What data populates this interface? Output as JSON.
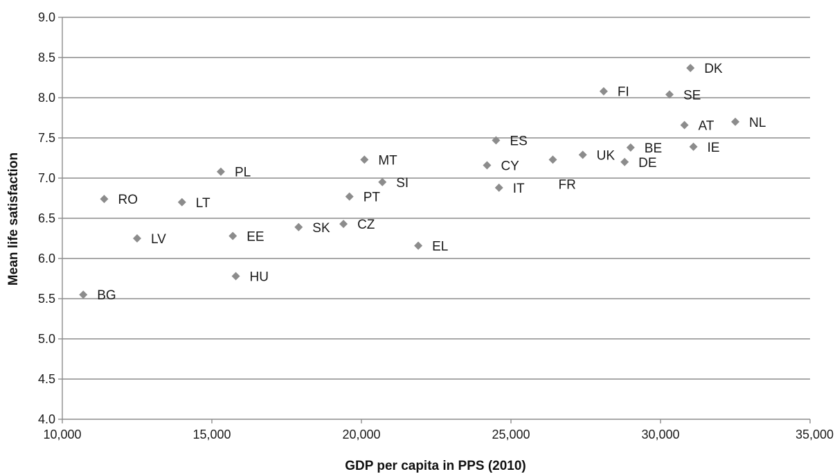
{
  "chart_data": {
    "type": "scatter",
    "title": "",
    "xlabel": "GDP per capita in PPS (2010)",
    "ylabel": "Mean life satisfaction",
    "xlim": [
      10000,
      35000
    ],
    "ylim": [
      4.0,
      9.0
    ],
    "x_ticks": [
      10000,
      15000,
      20000,
      25000,
      30000,
      35000
    ],
    "x_tick_labels": [
      "10,000",
      "15,000",
      "20,000",
      "25,000",
      "30,000",
      "35,000"
    ],
    "y_ticks": [
      4.0,
      4.5,
      5.0,
      5.5,
      6.0,
      6.5,
      7.0,
      7.5,
      8.0,
      8.5,
      9.0
    ],
    "y_tick_labels": [
      "4.0",
      "4.5",
      "5.0",
      "5.5",
      "6.0",
      "6.5",
      "7.0",
      "7.5",
      "8.0",
      "8.5",
      "9.0"
    ],
    "grid": "horizontal",
    "marker_color": "#8c8c8c",
    "marker_shape": "diamond",
    "points": [
      {
        "label": "BG",
        "x": 10700,
        "y": 5.55
      },
      {
        "label": "RO",
        "x": 11400,
        "y": 6.74
      },
      {
        "label": "LV",
        "x": 12500,
        "y": 6.25
      },
      {
        "label": "LT",
        "x": 14000,
        "y": 6.7
      },
      {
        "label": "PL",
        "x": 15300,
        "y": 7.08
      },
      {
        "label": "EE",
        "x": 15700,
        "y": 6.28
      },
      {
        "label": "HU",
        "x": 15800,
        "y": 5.78
      },
      {
        "label": "SK",
        "x": 17900,
        "y": 6.39
      },
      {
        "label": "CZ",
        "x": 19400,
        "y": 6.43
      },
      {
        "label": "PT",
        "x": 19600,
        "y": 6.77
      },
      {
        "label": "MT",
        "x": 20100,
        "y": 7.23
      },
      {
        "label": "SI",
        "x": 20700,
        "y": 6.95
      },
      {
        "label": "EL",
        "x": 21900,
        "y": 6.16
      },
      {
        "label": "CY",
        "x": 24200,
        "y": 7.16
      },
      {
        "label": "ES",
        "x": 24500,
        "y": 7.47
      },
      {
        "label": "IT",
        "x": 24600,
        "y": 6.88
      },
      {
        "label": "FR",
        "x": 26400,
        "y": 7.23
      },
      {
        "label": "UK",
        "x": 27400,
        "y": 7.29
      },
      {
        "label": "FI",
        "x": 28100,
        "y": 8.08
      },
      {
        "label": "DE",
        "x": 28800,
        "y": 7.2
      },
      {
        "label": "BE",
        "x": 29000,
        "y": 7.38
      },
      {
        "label": "SE",
        "x": 30300,
        "y": 8.04
      },
      {
        "label": "AT",
        "x": 30800,
        "y": 7.66
      },
      {
        "label": "DK",
        "x": 31000,
        "y": 8.37
      },
      {
        "label": "IE",
        "x": 31100,
        "y": 7.39
      },
      {
        "label": "NL",
        "x": 32500,
        "y": 7.7
      }
    ]
  }
}
